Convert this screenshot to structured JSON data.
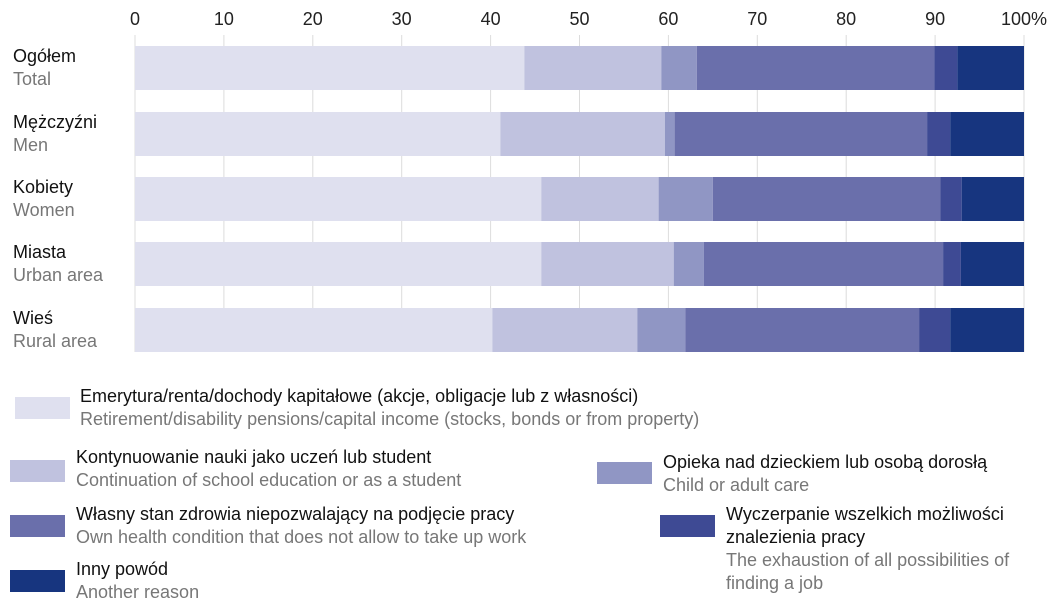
{
  "chart_data": {
    "type": "stacked_barh",
    "categories": [
      "Ogółem",
      "Mężczyźni",
      "Kobiety",
      "Miasta",
      "Wieś"
    ],
    "categories_en": [
      "Total",
      "Men",
      "Women",
      "Urban area",
      "Rural area"
    ],
    "series": [
      {
        "name": "Emerytura/renta/dochody kapitałowe (akcje, obligacje lub z własności)",
        "name_en": "Retirement/disability pensions/capital income (stocks, bonds or from property)",
        "color": "#dfe0ef",
        "values": [
          43.8,
          41.1,
          45.7,
          45.7,
          40.2
        ]
      },
      {
        "name": "Kontynuowanie nauki jako uczeń lub student",
        "name_en": "Continuation of school education or as a student",
        "color": "#c0c2df",
        "values": [
          15.4,
          18.5,
          13.2,
          14.9,
          16.3
        ]
      },
      {
        "name": "Opieka nad dzieckiem lub osobą dorosłą",
        "name_en": "Child or adult care",
        "color": "#9096c4",
        "values": [
          4.0,
          1.1,
          6.1,
          3.4,
          5.4
        ]
      },
      {
        "name": "Własny stan zdrowia niepozwalający na podjęcie pracy",
        "name_en": "Own health condition that does not allow to take up work",
        "color": "#6a6fab",
        "values": [
          26.7,
          28.4,
          25.6,
          26.9,
          26.3
        ]
      },
      {
        "name": "Wyczerpanie wszelkich możliwości znalezienia pracy",
        "name_en": "The exhaustion of all possibilities of finding a job",
        "color": "#3e4a94",
        "values": [
          2.6,
          2.6,
          2.4,
          2.0,
          3.5
        ]
      },
      {
        "name": "Inny powód",
        "name_en": "Another reason",
        "color": "#17357f",
        "values": [
          7.5,
          8.3,
          7.0,
          7.1,
          8.3
        ]
      }
    ],
    "xlim": [
      0,
      100
    ],
    "xticks": [
      0,
      10,
      20,
      30,
      40,
      50,
      60,
      70,
      80,
      90,
      {
        "value": 100,
        "label": "100%"
      }
    ],
    "grid": true
  }
}
